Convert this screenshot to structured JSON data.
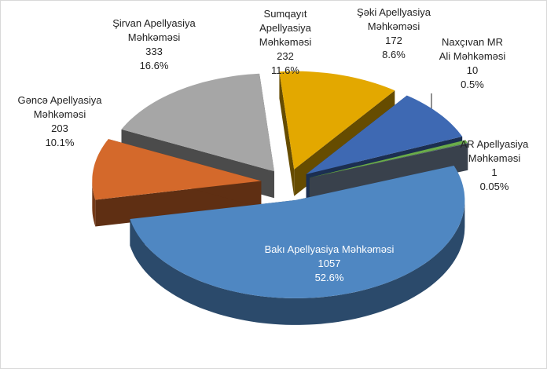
{
  "chart_data": {
    "type": "pie3d",
    "categories": [
      "Sumqayıt Apellyasiya Məhkəməsi",
      "Şəki Apellyasiya Məhkəməsi",
      "Naxçıvan MR Ali Məhkəməsi",
      "AR Apellyasiya Məhkəməsi",
      "Bakı Apellyasiya Məhkəməsi",
      "Gəncə Apellyasiya Məhkəməsi",
      "Şirvan Apellyasiya Məhkəməsi"
    ],
    "values": [
      232,
      172,
      10,
      1,
      1057,
      203,
      333
    ],
    "percentages": [
      11.6,
      8.6,
      0.5,
      0.05,
      52.6,
      10.1,
      16.6
    ],
    "percentage_labels": [
      "11.6%",
      "8.6%",
      "0.5%",
      "0.05%",
      "52.6%",
      "10.1%",
      "16.6%"
    ],
    "colors": [
      "#e3a800",
      "#3e69b3",
      "#6aac4a",
      "#7f90a8",
      "#4f87c2",
      "#d4692b",
      "#a6a6a6"
    ]
  }
}
